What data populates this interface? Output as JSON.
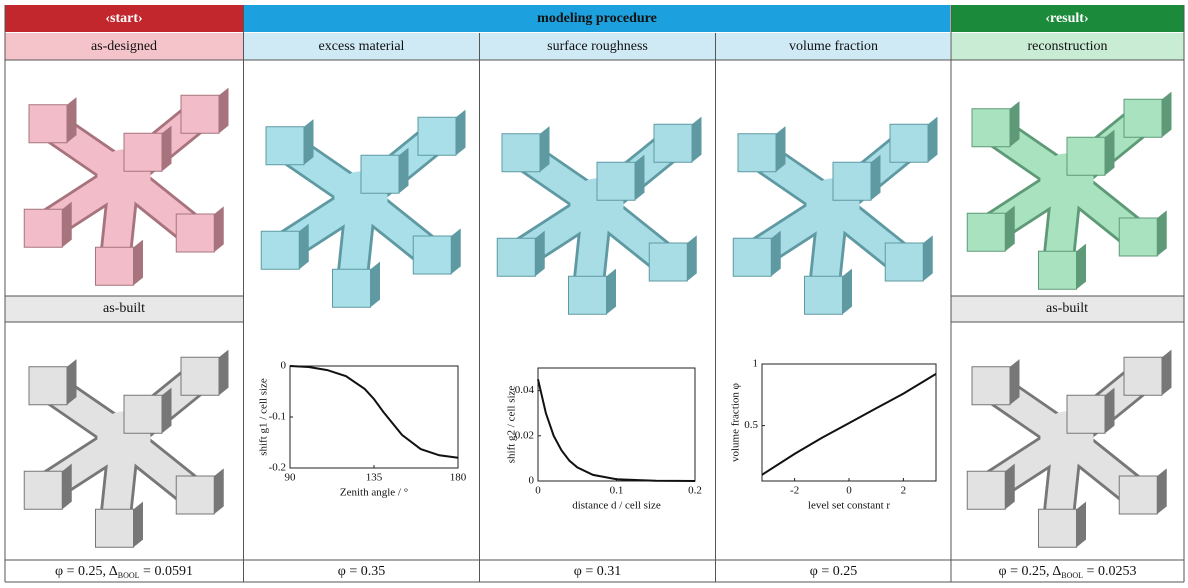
{
  "header": {
    "start": "‹start›",
    "procedure": "modeling procedure",
    "result": "‹result›"
  },
  "columns": [
    "as-designed",
    "excess material",
    "surface roughness",
    "volume fraction",
    "reconstruction"
  ],
  "as_built": [
    "as-built",
    "as-built"
  ],
  "plots": [
    {
      "ylabel": "shift g1 / cell size",
      "xlabel": "Zenith angle / °",
      "xlim": [
        90,
        180
      ],
      "ylim": [
        -0.2,
        0
      ],
      "xticks": [
        90,
        135,
        180
      ],
      "yticks": [
        0,
        -0.1,
        -0.2
      ],
      "x": [
        90,
        100,
        110,
        120,
        130,
        135,
        140,
        150,
        160,
        170,
        180
      ],
      "y": [
        0,
        -0.002,
        -0.008,
        -0.02,
        -0.045,
        -0.065,
        -0.09,
        -0.135,
        -0.163,
        -0.175,
        -0.18
      ]
    },
    {
      "ylabel": "shift g2 / cell size",
      "xlabel": "distance d / cell size",
      "xlim": [
        0,
        0.2
      ],
      "ylim": [
        0,
        0.05
      ],
      "xticks": [
        0,
        0.1,
        0.2
      ],
      "yticks": [
        0,
        0.02,
        0.04
      ],
      "x": [
        0,
        0.01,
        0.02,
        0.03,
        0.04,
        0.05,
        0.07,
        0.1,
        0.15,
        0.2
      ],
      "y": [
        0.045,
        0.03,
        0.02,
        0.0136,
        0.009,
        0.006,
        0.0027,
        0.0008,
        0.0001,
        0
      ]
    },
    {
      "ylabel": "volume fraction φ",
      "xlabel": "level set constant r",
      "xlim": [
        -3.2,
        3.2
      ],
      "ylim": [
        0.05,
        1
      ],
      "xticks": [
        -2,
        0,
        2
      ],
      "yticks": [
        0.5,
        1
      ],
      "x": [
        -3.2,
        -2,
        -1,
        0,
        1,
        2,
        3.2
      ],
      "y": [
        0.1,
        0.27,
        0.4,
        0.52,
        0.64,
        0.76,
        0.92
      ]
    }
  ],
  "footer": [
    {
      "prefix": "φ = 0.25, Δ",
      "subscript": "BOOL",
      "suffix": " = 0.0591"
    },
    {
      "text": "φ = 0.35"
    },
    {
      "text": "φ = 0.31"
    },
    {
      "text": "φ = 0.25"
    },
    {
      "prefix": "φ = 0.25, Δ",
      "subscript": "BOOL",
      "suffix": " = 0.0253"
    }
  ]
}
